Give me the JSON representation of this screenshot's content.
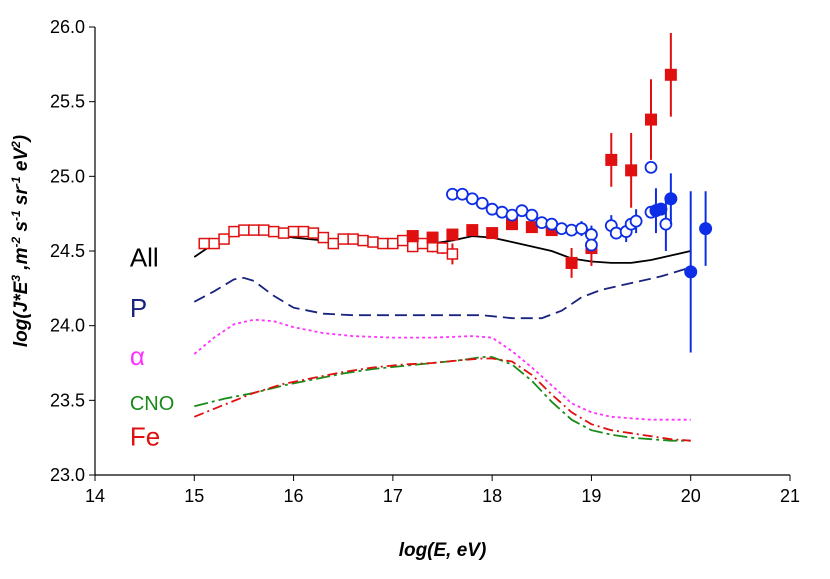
{
  "chart_data": {
    "type": "scatter",
    "title": "",
    "xlabel": "log(E, eV)",
    "ylabel_parts": [
      "log(J*E",
      "3",
      " ,m",
      "-2",
      " s",
      "-1",
      " sr",
      "-1",
      " eV",
      "2",
      ")"
    ],
    "xlim": [
      14,
      21
    ],
    "ylim": [
      23.0,
      26.0
    ],
    "x_ticks": [
      "14",
      "15",
      "16",
      "17",
      "18",
      "19",
      "20",
      "21"
    ],
    "y_ticks": [
      "23.0",
      "23.5",
      "24.0",
      "24.5",
      "25.0",
      "25.5",
      "26.0"
    ],
    "grid": false,
    "legend": "none",
    "line_series": [
      {
        "name": "All",
        "color": "#000000",
        "dash": "",
        "label_at": [
          15.25,
          24.45
        ],
        "points": [
          [
            15.0,
            24.46
          ],
          [
            15.2,
            24.55
          ],
          [
            15.4,
            24.62
          ],
          [
            15.6,
            24.63
          ],
          [
            15.8,
            24.61
          ],
          [
            16.0,
            24.59
          ],
          [
            16.3,
            24.57
          ],
          [
            16.6,
            24.55
          ],
          [
            17.0,
            24.54
          ],
          [
            17.3,
            24.54
          ],
          [
            17.6,
            24.57
          ],
          [
            17.8,
            24.6
          ],
          [
            18.0,
            24.59
          ],
          [
            18.2,
            24.56
          ],
          [
            18.4,
            24.53
          ],
          [
            18.6,
            24.5
          ],
          [
            18.8,
            24.45
          ],
          [
            19.0,
            24.43
          ],
          [
            19.2,
            24.42
          ],
          [
            19.4,
            24.42
          ],
          [
            19.6,
            24.44
          ],
          [
            19.8,
            24.47
          ],
          [
            20.0,
            24.5
          ]
        ]
      },
      {
        "name": "P",
        "color": "#1a237e",
        "dash": "12,6",
        "label_at": [
          15.25,
          24.11
        ],
        "points": [
          [
            15.0,
            24.16
          ],
          [
            15.2,
            24.23
          ],
          [
            15.4,
            24.31
          ],
          [
            15.5,
            24.32
          ],
          [
            15.6,
            24.3
          ],
          [
            15.8,
            24.2
          ],
          [
            16.0,
            24.12
          ],
          [
            16.3,
            24.08
          ],
          [
            16.6,
            24.07
          ],
          [
            17.0,
            24.07
          ],
          [
            17.3,
            24.07
          ],
          [
            17.6,
            24.07
          ],
          [
            17.9,
            24.07
          ],
          [
            18.2,
            24.05
          ],
          [
            18.5,
            24.05
          ],
          [
            18.7,
            24.1
          ],
          [
            18.9,
            24.19
          ],
          [
            19.1,
            24.24
          ],
          [
            19.3,
            24.27
          ],
          [
            19.5,
            24.3
          ],
          [
            19.7,
            24.33
          ],
          [
            19.9,
            24.37
          ],
          [
            20.0,
            24.39
          ]
        ]
      },
      {
        "name": "α",
        "color": "#ff33ff",
        "dash": "3,3",
        "label_at": [
          15.25,
          23.79
        ],
        "points": [
          [
            15.0,
            23.81
          ],
          [
            15.2,
            23.92
          ],
          [
            15.4,
            24.01
          ],
          [
            15.6,
            24.04
          ],
          [
            15.8,
            24.03
          ],
          [
            16.0,
            23.99
          ],
          [
            16.3,
            23.95
          ],
          [
            16.6,
            23.93
          ],
          [
            17.0,
            23.92
          ],
          [
            17.4,
            23.92
          ],
          [
            17.8,
            23.93
          ],
          [
            18.0,
            23.92
          ],
          [
            18.2,
            23.83
          ],
          [
            18.4,
            23.72
          ],
          [
            18.6,
            23.6
          ],
          [
            18.8,
            23.48
          ],
          [
            19.0,
            23.42
          ],
          [
            19.2,
            23.39
          ],
          [
            19.4,
            23.38
          ],
          [
            19.6,
            23.37
          ],
          [
            19.8,
            23.37
          ],
          [
            20.0,
            23.37
          ]
        ]
      },
      {
        "name": "CNO",
        "color": "#1a8a1a",
        "dash": "14,4,3,4",
        "label_at": [
          15.25,
          23.49
        ],
        "points": [
          [
            15.0,
            23.46
          ],
          [
            15.3,
            23.51
          ],
          [
            15.6,
            23.55
          ],
          [
            15.9,
            23.6
          ],
          [
            16.2,
            23.64
          ],
          [
            16.5,
            23.68
          ],
          [
            16.8,
            23.71
          ],
          [
            17.1,
            23.73
          ],
          [
            17.4,
            23.75
          ],
          [
            17.7,
            23.77
          ],
          [
            17.9,
            23.79
          ],
          [
            18.0,
            23.79
          ],
          [
            18.2,
            23.74
          ],
          [
            18.4,
            23.63
          ],
          [
            18.6,
            23.49
          ],
          [
            18.8,
            23.37
          ],
          [
            19.0,
            23.3
          ],
          [
            19.2,
            23.27
          ],
          [
            19.4,
            23.25
          ],
          [
            19.6,
            23.24
          ],
          [
            19.8,
            23.23
          ],
          [
            20.0,
            23.23
          ]
        ]
      },
      {
        "name": "Fe",
        "color": "#e01010",
        "dash": "10,4,2,4",
        "label_at": [
          15.25,
          23.25
        ],
        "points": [
          [
            15.0,
            23.39
          ],
          [
            15.3,
            23.47
          ],
          [
            15.6,
            23.55
          ],
          [
            15.9,
            23.61
          ],
          [
            16.2,
            23.65
          ],
          [
            16.5,
            23.69
          ],
          [
            16.8,
            23.72
          ],
          [
            17.1,
            23.74
          ],
          [
            17.4,
            23.75
          ],
          [
            17.7,
            23.77
          ],
          [
            17.9,
            23.78
          ],
          [
            18.0,
            23.78
          ],
          [
            18.2,
            23.76
          ],
          [
            18.4,
            23.67
          ],
          [
            18.6,
            23.54
          ],
          [
            18.8,
            23.42
          ],
          [
            19.0,
            23.34
          ],
          [
            19.2,
            23.3
          ],
          [
            19.4,
            23.28
          ],
          [
            19.6,
            23.26
          ],
          [
            19.8,
            23.24
          ],
          [
            20.0,
            23.23
          ]
        ]
      }
    ],
    "marker_series": [
      {
        "marker": "open-square",
        "color": "#e01010",
        "points": [
          [
            15.1,
            24.55
          ],
          [
            15.2,
            24.55
          ],
          [
            15.3,
            24.58
          ],
          [
            15.4,
            24.63
          ],
          [
            15.5,
            24.64
          ],
          [
            15.6,
            24.64
          ],
          [
            15.7,
            24.64
          ],
          [
            15.8,
            24.63
          ],
          [
            15.9,
            24.62
          ],
          [
            16.0,
            24.63
          ],
          [
            16.1,
            24.63
          ],
          [
            16.2,
            24.62
          ],
          [
            16.3,
            24.59
          ],
          [
            16.4,
            24.55
          ],
          [
            16.5,
            24.58
          ],
          [
            16.6,
            24.58
          ],
          [
            16.7,
            24.57
          ],
          [
            16.8,
            24.56
          ],
          [
            16.9,
            24.55
          ],
          [
            17.0,
            24.55
          ],
          [
            17.1,
            24.57
          ],
          [
            17.2,
            24.53
          ],
          [
            17.3,
            24.55
          ],
          [
            17.4,
            24.53
          ],
          [
            17.5,
            24.52
          ],
          [
            17.6,
            24.48
          ]
        ],
        "errors": [
          [
            17.4,
            0.04
          ],
          [
            17.5,
            0.04
          ],
          [
            17.6,
            0.07
          ]
        ]
      },
      {
        "marker": "filled-square",
        "color": "#e01010",
        "points": [
          [
            17.2,
            24.6
          ],
          [
            17.4,
            24.59
          ],
          [
            17.6,
            24.61
          ],
          [
            17.8,
            24.64
          ],
          [
            18.0,
            24.62
          ],
          [
            18.2,
            24.68
          ],
          [
            18.4,
            24.66
          ],
          [
            18.6,
            24.64
          ],
          [
            18.8,
            24.42
          ],
          [
            19.0,
            24.52
          ],
          [
            19.2,
            25.11
          ],
          [
            19.4,
            25.04
          ],
          [
            19.6,
            25.38
          ],
          [
            19.8,
            25.68
          ]
        ],
        "errors": [
          [
            18.8,
            0.1
          ],
          [
            19.0,
            0.12
          ],
          [
            19.2,
            0.18
          ],
          [
            19.4,
            0.25
          ],
          [
            19.6,
            0.27
          ],
          [
            19.8,
            0.28
          ]
        ]
      },
      {
        "marker": "open-circle",
        "color": "#0d2ee6",
        "points": [
          [
            17.6,
            24.88
          ],
          [
            17.7,
            24.88
          ],
          [
            17.8,
            24.85
          ],
          [
            17.9,
            24.82
          ],
          [
            18.0,
            24.78
          ],
          [
            18.1,
            24.76
          ],
          [
            18.2,
            24.74
          ],
          [
            18.3,
            24.77
          ],
          [
            18.4,
            24.74
          ],
          [
            18.5,
            24.69
          ],
          [
            18.6,
            24.68
          ],
          [
            18.7,
            24.65
          ],
          [
            18.8,
            24.64
          ],
          [
            18.9,
            24.65
          ],
          [
            19.0,
            24.61
          ],
          [
            19.0,
            24.54
          ],
          [
            19.2,
            24.67
          ],
          [
            19.25,
            24.62
          ],
          [
            19.35,
            24.63
          ],
          [
            19.4,
            24.68
          ],
          [
            19.45,
            24.7
          ],
          [
            19.6,
            25.06
          ],
          [
            19.6,
            24.76
          ],
          [
            19.75,
            24.68
          ]
        ],
        "errors": [
          [
            18.9,
            0.05
          ],
          [
            19.0,
            0.06
          ],
          [
            19.2,
            0.07
          ],
          [
            19.35,
            0.07
          ],
          [
            19.45,
            0.08
          ],
          [
            19.75,
            0.18
          ]
        ]
      },
      {
        "marker": "filled-circle",
        "color": "#0d2ee6",
        "points": [
          [
            19.65,
            24.77
          ],
          [
            19.7,
            24.78
          ],
          [
            19.8,
            24.85
          ],
          [
            20.0,
            24.36
          ],
          [
            20.15,
            24.65
          ]
        ],
        "errors": [
          [
            19.65,
            0.15
          ],
          [
            19.8,
            0.17
          ],
          [
            20.0,
            0.54
          ],
          [
            20.15,
            0.25
          ]
        ]
      }
    ]
  }
}
